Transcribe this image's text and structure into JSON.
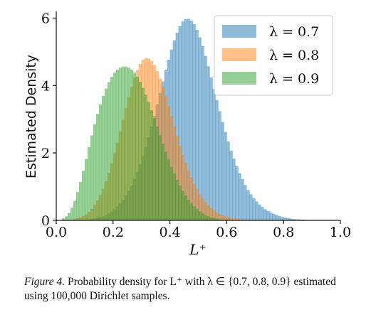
{
  "chart_data": {
    "type": "bar",
    "xlabel": "L⁺",
    "ylabel": "Estimated Density",
    "xlim": [
      0.0,
      1.0
    ],
    "ylim": [
      0,
      6.2
    ],
    "xticks": [
      "0.0",
      "0.2",
      "0.4",
      "0.6",
      "0.8",
      "1.0"
    ],
    "yticks": [
      "0",
      "2",
      "4",
      "6"
    ],
    "grid": false,
    "legend_position": "top-right",
    "bin_width": 0.01,
    "series": [
      {
        "name": "λ = 0.7",
        "color": "#1f77b4",
        "bins_start": 0.12,
        "values": [
          0.04,
          0.05,
          0.07,
          0.09,
          0.12,
          0.16,
          0.21,
          0.26,
          0.33,
          0.41,
          0.5,
          0.61,
          0.74,
          0.88,
          1.04,
          1.23,
          1.43,
          1.66,
          1.91,
          2.18,
          2.47,
          2.78,
          3.1,
          3.44,
          3.78,
          4.12,
          4.45,
          4.77,
          5.07,
          5.34,
          5.57,
          5.76,
          5.9,
          5.97,
          5.98,
          5.93,
          5.82,
          5.65,
          5.43,
          5.17,
          4.88,
          4.57,
          4.24,
          3.9,
          3.57,
          3.24,
          2.92,
          2.62,
          2.34,
          2.07,
          1.83,
          1.6,
          1.4,
          1.22,
          1.05,
          0.9,
          0.77,
          0.66,
          0.56,
          0.47,
          0.4,
          0.33,
          0.28,
          0.23,
          0.19,
          0.16,
          0.13,
          0.1,
          0.08,
          0.07,
          0.05,
          0.04,
          0.03,
          0.03,
          0.02,
          0.02
        ]
      },
      {
        "name": "λ = 0.8",
        "color": "#ff7f0e",
        "bins_start": 0.06,
        "values": [
          0.04,
          0.06,
          0.09,
          0.13,
          0.18,
          0.25,
          0.34,
          0.45,
          0.59,
          0.75,
          0.94,
          1.16,
          1.41,
          1.69,
          1.99,
          2.31,
          2.65,
          2.99,
          3.33,
          3.66,
          3.96,
          4.23,
          4.46,
          4.64,
          4.76,
          4.81,
          4.8,
          4.73,
          4.61,
          4.43,
          4.21,
          3.96,
          3.68,
          3.39,
          3.09,
          2.79,
          2.5,
          2.22,
          1.95,
          1.71,
          1.48,
          1.28,
          1.09,
          0.93,
          0.78,
          0.66,
          0.55,
          0.45,
          0.37,
          0.3,
          0.24,
          0.19,
          0.15,
          0.12,
          0.09,
          0.07,
          0.05,
          0.04,
          0.03,
          0.02
        ]
      },
      {
        "name": "λ = 0.9",
        "color": "#2ca02c",
        "bins_start": 0.02,
        "values": [
          0.06,
          0.12,
          0.22,
          0.38,
          0.58,
          0.84,
          1.14,
          1.47,
          1.82,
          2.17,
          2.52,
          2.85,
          3.16,
          3.44,
          3.69,
          3.91,
          4.1,
          4.26,
          4.38,
          4.47,
          4.53,
          4.56,
          4.56,
          4.53,
          4.47,
          4.38,
          4.26,
          4.11,
          3.93,
          3.73,
          3.51,
          3.27,
          3.03,
          2.78,
          2.53,
          2.28,
          2.04,
          1.81,
          1.59,
          1.39,
          1.2,
          1.03,
          0.88,
          0.74,
          0.62,
          0.51,
          0.42,
          0.34,
          0.27,
          0.21,
          0.16,
          0.12,
          0.09,
          0.07,
          0.05,
          0.03,
          0.02
        ]
      }
    ]
  },
  "caption": {
    "figure_label": "Figure 4.",
    "text": "Probability density for L⁺ with λ ∈ {0.7, 0.8, 0.9} estimated using 100,000 Dirichlet samples."
  }
}
